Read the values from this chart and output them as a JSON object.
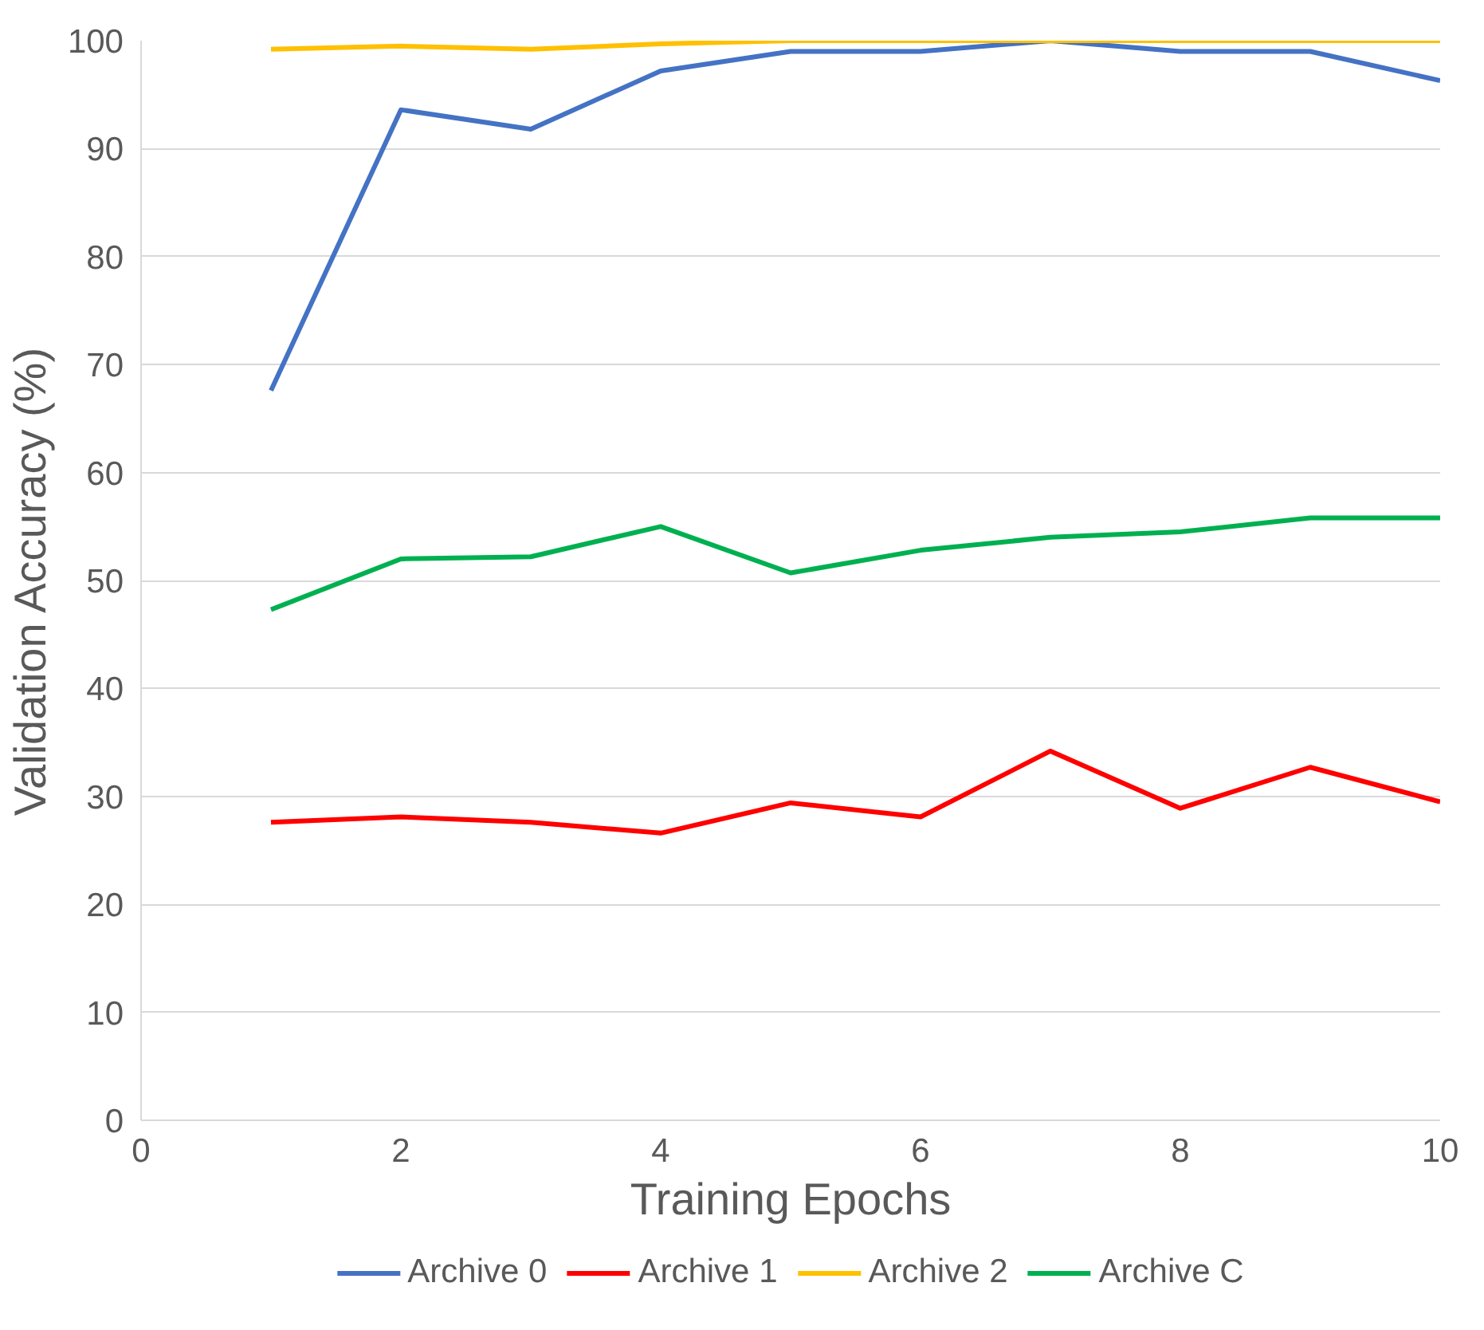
{
  "chart_data": {
    "type": "line",
    "xlabel": "Training Epochs",
    "ylabel": "Validation Accuracy (%)",
    "x": [
      1,
      2,
      3,
      4,
      5,
      6,
      7,
      8,
      9,
      10
    ],
    "series": [
      {
        "name": "Archive 0",
        "color": "#4472c4",
        "values": [
          67.6,
          93.6,
          91.8,
          97.2,
          99,
          99,
          100,
          99,
          99,
          96.3
        ]
      },
      {
        "name": "Archive 1",
        "color": "#ff0000",
        "values": [
          27.6,
          28.1,
          27.6,
          26.6,
          29.4,
          28.1,
          34.2,
          28.9,
          32.7,
          29.5
        ]
      },
      {
        "name": "Archive 2",
        "color": "#ffc000",
        "values": [
          99.2,
          99.5,
          99.2,
          99.7,
          100,
          100,
          100,
          100,
          100,
          100
        ]
      },
      {
        "name": "Archive C",
        "color": "#00b050",
        "values": [
          47.3,
          52,
          52.2,
          55,
          50.7,
          52.8,
          54,
          54.5,
          55.8,
          55.8
        ]
      }
    ],
    "xlim": [
      0,
      10
    ],
    "xticks": [
      0,
      2,
      4,
      6,
      8,
      10
    ],
    "ylim": [
      0,
      100
    ],
    "yticks": [
      0,
      10,
      20,
      30,
      40,
      50,
      60,
      70,
      80,
      90,
      100
    ],
    "grid": "y",
    "legend": "bottom",
    "marker": "none",
    "line_style": "solid"
  }
}
